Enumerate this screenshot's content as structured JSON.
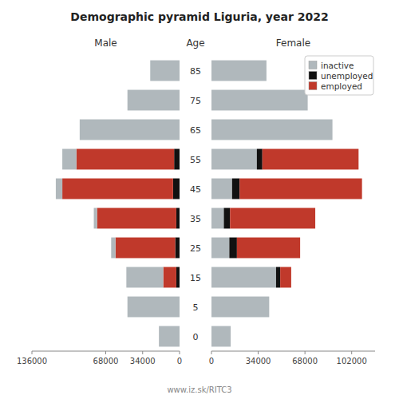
{
  "chart_data": {
    "type": "pyramid",
    "title": "Demographic pyramid Liguria, year 2022",
    "caption": "www.iz.sk/RITC3",
    "ylabel": "Age",
    "categories": [
      "85",
      "75",
      "65",
      "55",
      "45",
      "35",
      "25",
      "15",
      "5",
      "0"
    ],
    "grid": false,
    "panels": [
      {
        "title": "Male",
        "orientation": "horizontal",
        "stacked": true,
        "xlim": [
          136000,
          0
        ],
        "xticks": [
          0,
          34000,
          68000,
          136000
        ],
        "series": [
          {
            "name": "unemployed",
            "color": "#111111",
            "values": [
              0,
              0,
              0,
              5000,
              6000,
              3000,
              4000,
              3000,
              0,
              0
            ]
          },
          {
            "name": "employed",
            "color": "#c0392b",
            "values": [
              0,
              0,
              0,
              90000,
              102000,
              73000,
              55000,
              12000,
              0,
              0
            ]
          },
          {
            "name": "inactive",
            "color": "#b0b8bc",
            "values": [
              27000,
              48000,
              92000,
              13000,
              6000,
              3000,
              4000,
              34000,
              48000,
              19000
            ]
          }
        ]
      },
      {
        "title": "Female",
        "orientation": "horizontal",
        "stacked": true,
        "xlim": [
          0,
          119000
        ],
        "xticks": [
          0,
          34000,
          68000,
          102000
        ],
        "legend": "upper right",
        "series": [
          {
            "name": "inactive",
            "color": "#b0b8bc",
            "values": [
              40000,
              70000,
              88000,
              33000,
              15000,
              9000,
              13000,
              47000,
              42000,
              14000
            ]
          },
          {
            "name": "unemployed",
            "color": "#111111",
            "values": [
              0,
              0,
              0,
              4000,
              5500,
              4500,
              5500,
              3000,
              0,
              0
            ]
          },
          {
            "name": "employed",
            "color": "#c0392b",
            "values": [
              0,
              0,
              0,
              70000,
              89000,
              62000,
              46000,
              8000,
              0,
              0
            ]
          }
        ]
      }
    ]
  }
}
